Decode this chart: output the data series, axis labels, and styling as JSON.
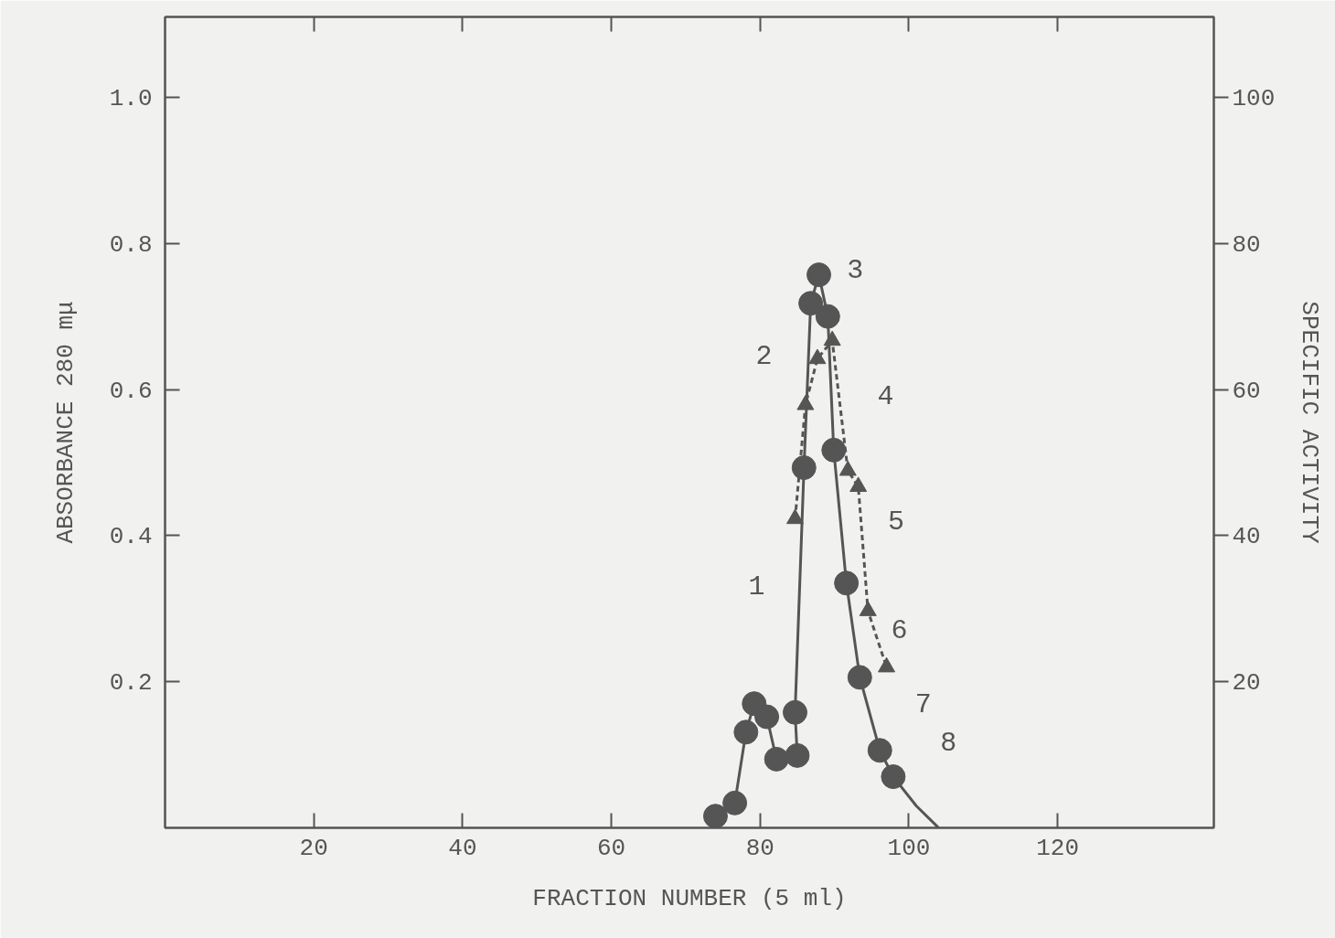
{
  "chart_data": {
    "type": "line",
    "xlabel": "FRACTION NUMBER (5 ml)",
    "ylabel": "ABSORBANCE 280 mμ",
    "y2label": "SPECIFIC ACTIVITY",
    "xlim": [
      0,
      141
    ],
    "xticks": [
      20,
      40,
      60,
      80,
      100,
      120
    ],
    "ylim": [
      0,
      1.11
    ],
    "yticks": [
      0.2,
      0.4,
      0.6,
      0.8,
      {
        "value": 1,
        "label": "1.0"
      }
    ],
    "y2lim": [
      0,
      111
    ],
    "y2ticks": [
      20,
      40,
      60,
      80,
      100
    ],
    "grid": false,
    "series": [
      {
        "axis": "y",
        "color": "#555555",
        "marker": "circle",
        "line_style": "solid",
        "x": [
          74.0,
          76.6,
          78.1,
          79.2,
          80.9,
          82.2,
          85.0,
          84.7,
          85.9,
          86.8,
          87.9,
          89.1,
          89.9,
          91.6,
          93.4,
          96.1,
          97.9
        ],
        "values": [
          0.016,
          0.034,
          0.131,
          0.17,
          0.152,
          0.094,
          0.099,
          0.158,
          0.493,
          0.718,
          0.757,
          0.7,
          0.517,
          0.335,
          0.206,
          0.106,
          0.07
        ]
      },
      {
        "axis": "y",
        "color": "#555555",
        "marker": "none",
        "line_style": "solid",
        "x": [
          97.9,
          101,
          104
        ],
        "values": [
          0.07,
          0.03,
          0
        ]
      },
      {
        "axis": "y2",
        "color": "#555555",
        "marker": "triangle",
        "line_style": "dashed",
        "x": [
          84.7,
          86.1,
          87.7,
          89.7,
          91.8,
          93.2,
          94.5,
          97.0
        ],
        "values": [
          42.3,
          57.9,
          64.2,
          66.7,
          48.9,
          46.7,
          29.7,
          22.0
        ]
      }
    ],
    "annotations": [
      "1",
      "2",
      "3",
      "4",
      "5",
      "6",
      "7",
      "8"
    ]
  }
}
